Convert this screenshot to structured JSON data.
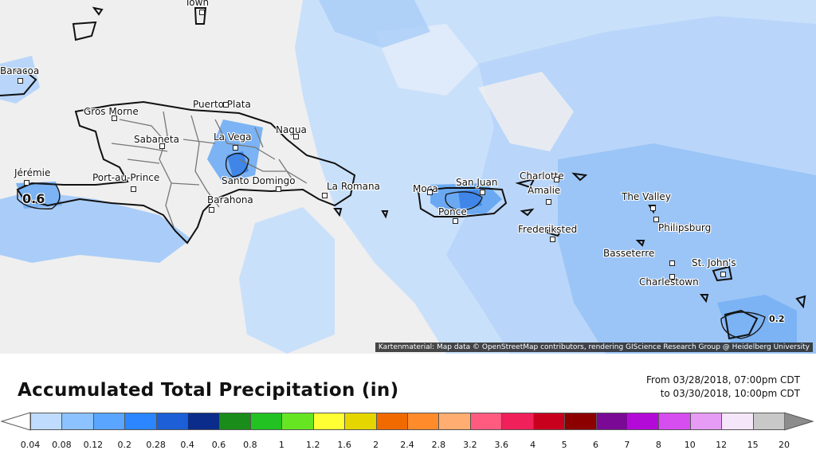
{
  "map": {
    "cities": [
      {
        "name": "Town"
      },
      {
        "name": "Baracoa"
      },
      {
        "name": "Gros Morne"
      },
      {
        "name": "Puerto Plata"
      },
      {
        "name": "Sabaneta"
      },
      {
        "name": "Nagua"
      },
      {
        "name": "La Vega"
      },
      {
        "name": "Jérémie"
      },
      {
        "name": "Port-au-Prince"
      },
      {
        "name": "Santo Domingo"
      },
      {
        "name": "La Romana"
      },
      {
        "name": "Barahona"
      },
      {
        "name": "Moca"
      },
      {
        "name": "San Juan"
      },
      {
        "name": "Ponce"
      },
      {
        "name": "Charlotte"
      },
      {
        "name": "Amalie"
      },
      {
        "name": "Frederiksted"
      },
      {
        "name": "The Valley"
      },
      {
        "name": "Philipsburg"
      },
      {
        "name": "Basseterre"
      },
      {
        "name": "St. John's"
      },
      {
        "name": "Charlestown"
      }
    ],
    "contour_labels": [
      "0.6",
      "0.2"
    ],
    "attribution": "Kartenmaterial: Map data © OpenStreetMap contributors, rendering GIScience Research Group @ Heidelberg University"
  },
  "legend": {
    "title": "Accumulated Total Precipitation (in)",
    "period_from": "From 03/28/2018, 07:00pm CDT",
    "period_to": "to 03/30/2018, 10:00pm CDT",
    "ticks": [
      "0.04",
      "0.08",
      "0.12",
      "0.2",
      "0.28",
      "0.4",
      "0.6",
      "0.8",
      "1",
      "1.2",
      "1.6",
      "2",
      "2.4",
      "2.8",
      "3.2",
      "3.6",
      "4",
      "5",
      "6",
      "7",
      "8",
      "10",
      "12",
      "15",
      "20"
    ],
    "colors": [
      "#bfdcff",
      "#8cc2ff",
      "#5aa5ff",
      "#2b86ff",
      "#1c5fd6",
      "#0b2c8a",
      "#1a8c1a",
      "#22c222",
      "#66e622",
      "#ffff33",
      "#e6d600",
      "#f06a00",
      "#ff8b2b",
      "#ffad70",
      "#ff5a7f",
      "#f0205a",
      "#c8001e",
      "#8c0000",
      "#7a0a96",
      "#b40ad8",
      "#d64df0",
      "#e69cf5",
      "#f5e6fa",
      "#c8c8c8"
    ]
  }
}
